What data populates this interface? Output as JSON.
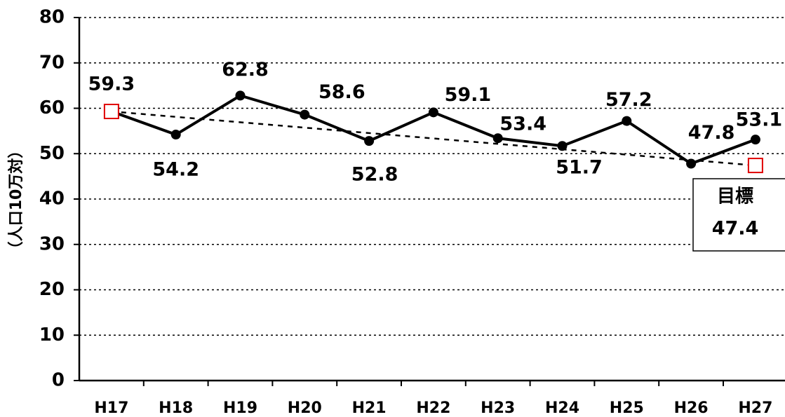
{
  "chart_data": {
    "type": "line",
    "y_label": "（人口10万対）",
    "categories": [
      "H17",
      "H18",
      "H19",
      "H20",
      "H21",
      "H22",
      "H23",
      "H24",
      "H25",
      "H26",
      "H27"
    ],
    "values": [
      59.3,
      54.2,
      62.8,
      58.6,
      52.8,
      59.1,
      53.4,
      51.7,
      57.2,
      47.8,
      53.1
    ],
    "color": "#000000",
    "target": {
      "label": "目標",
      "value": 47.4,
      "color": "#e00000"
    },
    "ylim": [
      0,
      80
    ],
    "yticks": [
      0,
      10,
      20,
      30,
      40,
      50,
      60,
      70,
      80
    ],
    "grid": true
  }
}
